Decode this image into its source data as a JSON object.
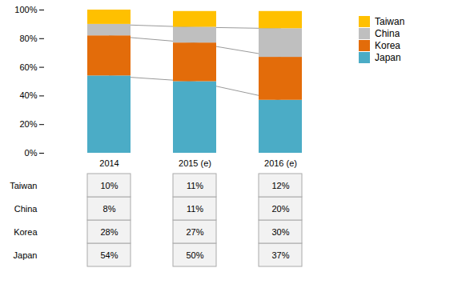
{
  "chart_data": {
    "type": "bar",
    "stacked": true,
    "categories": [
      "2014",
      "2015 (e)",
      "2016 (e)"
    ],
    "series": [
      {
        "name": "Japan",
        "color": "#4BACC6",
        "values": [
          54,
          50,
          37
        ],
        "value_labels": [
          "54%",
          "50%",
          "37%"
        ]
      },
      {
        "name": "Korea",
        "color": "#E36C0A",
        "values": [
          28,
          27,
          30
        ],
        "value_labels": [
          "28%",
          "27%",
          "30%"
        ]
      },
      {
        "name": "China",
        "color": "#BFBFBF",
        "values": [
          8,
          11,
          20
        ],
        "value_labels": [
          "8%",
          "11%",
          "20%"
        ]
      },
      {
        "name": "Taiwan",
        "color": "#FFC000",
        "values": [
          10,
          11,
          12
        ],
        "value_labels": [
          "10%",
          "11%",
          "12%"
        ]
      }
    ],
    "ylim": [
      0,
      100
    ],
    "yticks": [
      {
        "value": 0,
        "label": "0%"
      },
      {
        "value": 20,
        "label": "20%"
      },
      {
        "value": 40,
        "label": "40%"
      },
      {
        "value": 60,
        "label": "60%"
      },
      {
        "value": 80,
        "label": "80%"
      },
      {
        "value": 100,
        "label": "100%"
      }
    ],
    "grid": false,
    "legend": "right",
    "data_labels": true
  }
}
